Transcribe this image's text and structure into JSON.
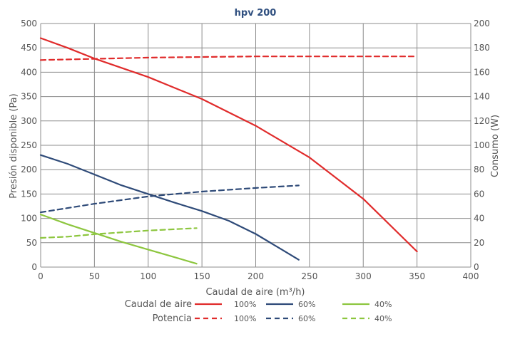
{
  "chart_data": {
    "type": "line",
    "title": "hpv 200",
    "xlabel": "Caudal de aire (m³/h)",
    "ylabel": "Presión disponible (Pa)",
    "y2label": "Consumo (W)",
    "xlim": [
      0,
      400
    ],
    "ylim": [
      0,
      500
    ],
    "y2lim": [
      0,
      200
    ],
    "xticks": [
      "0",
      "50",
      "100",
      "150",
      "200",
      "250",
      "300",
      "350",
      "400"
    ],
    "yticks": [
      "0",
      "50",
      "100",
      "150",
      "200",
      "250",
      "300",
      "350",
      "400",
      "450",
      "500"
    ],
    "y2ticks": [
      "0",
      "20",
      "40",
      "60",
      "80",
      "100",
      "120",
      "140",
      "160",
      "180",
      "200"
    ],
    "grid": true,
    "colors": {
      "red": "#e02b2b",
      "blue": "#2e4a78",
      "green": "#8dc63f",
      "grid": "#8c8c8c",
      "title": "#2f4f7f"
    },
    "series": [
      {
        "name": "100%",
        "group": "Caudal de aire",
        "axis": "left",
        "color": "#e02b2b",
        "dashed": false,
        "x": [
          0,
          25,
          50,
          100,
          150,
          200,
          250,
          300,
          350
        ],
        "y": [
          470,
          450,
          428,
          390,
          345,
          290,
          225,
          140,
          32
        ]
      },
      {
        "name": "60%",
        "group": "Caudal de aire",
        "axis": "left",
        "color": "#2e4a78",
        "dashed": false,
        "x": [
          0,
          25,
          50,
          75,
          100,
          125,
          150,
          175,
          200,
          225,
          240
        ],
        "y": [
          230,
          212,
          190,
          168,
          150,
          132,
          115,
          95,
          68,
          35,
          15
        ]
      },
      {
        "name": "40%",
        "group": "Caudal de aire",
        "axis": "left",
        "color": "#8dc63f",
        "dashed": false,
        "x": [
          0,
          25,
          50,
          75,
          100,
          125,
          145
        ],
        "y": [
          108,
          88,
          70,
          52,
          36,
          20,
          7
        ]
      },
      {
        "name": "100%",
        "group": "Potencia",
        "axis": "right",
        "color": "#e02b2b",
        "dashed": true,
        "x": [
          0,
          50,
          100,
          150,
          200,
          250,
          300,
          350
        ],
        "y": [
          170,
          171,
          172,
          172.5,
          173,
          173,
          173,
          173
        ]
      },
      {
        "name": "60%",
        "group": "Potencia",
        "axis": "right",
        "color": "#2e4a78",
        "dashed": true,
        "x": [
          0,
          50,
          100,
          150,
          200,
          240
        ],
        "y": [
          45,
          52,
          58,
          62,
          65,
          67
        ]
      },
      {
        "name": "40%",
        "group": "Potencia",
        "axis": "right",
        "color": "#8dc63f",
        "dashed": true,
        "x": [
          0,
          25,
          50,
          100,
          145
        ],
        "y": [
          24,
          25,
          27,
          30,
          32
        ]
      }
    ],
    "legend": {
      "placement": "bottom",
      "row_labels": [
        "Caudal de aire",
        "Potencia"
      ],
      "entries": [
        "100%",
        "60%",
        "40%"
      ]
    }
  }
}
